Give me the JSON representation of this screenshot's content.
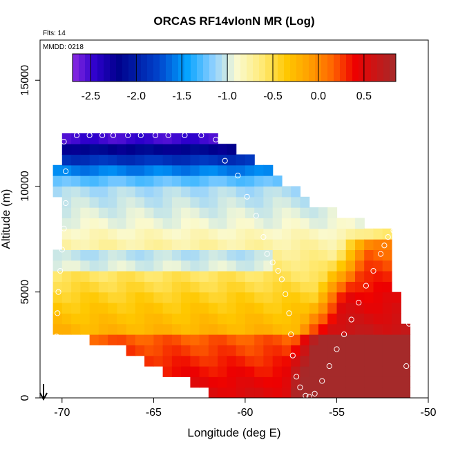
{
  "chart_data": {
    "type": "heatmap",
    "title": "ORCAS RF14vlonN MR (Log)",
    "xlabel": "Longitude (deg E)",
    "ylabel": "Altitude (m)",
    "xlim": [
      -71.2,
      -50
    ],
    "ylim": [
      0,
      16900
    ],
    "x_ticks": [
      "-70",
      "-65",
      "-60",
      "-55",
      "-50"
    ],
    "y_ticks": [
      "0",
      "5000",
      "10000",
      "15000"
    ],
    "annotations": {
      "flights": "Flts: 14",
      "date": "MMDD: 0218"
    },
    "colorbar": {
      "range": [
        -2.7,
        0.85
      ],
      "ticks": [
        "-2.5",
        "-2.0",
        "-1.5",
        "-1.0",
        "-0.5",
        "0.0",
        "0.5"
      ],
      "stops": [
        {
          "v": -2.7,
          "color": "#8b2be2"
        },
        {
          "v": -2.45,
          "color": "#2d00cc"
        },
        {
          "v": -2.2,
          "color": "#00008b"
        },
        {
          "v": -1.75,
          "color": "#0044cc"
        },
        {
          "v": -1.45,
          "color": "#00a2ff"
        },
        {
          "v": -1.15,
          "color": "#8fd0ff"
        },
        {
          "v": -0.9,
          "color": "#fafad2"
        },
        {
          "v": -0.6,
          "color": "#ffe970"
        },
        {
          "v": -0.35,
          "color": "#ffc800"
        },
        {
          "v": -0.1,
          "color": "#ffa000"
        },
        {
          "v": 0.15,
          "color": "#ff6600"
        },
        {
          "v": 0.4,
          "color": "#ee0000"
        },
        {
          "v": 0.85,
          "color": "#a52a2a"
        }
      ]
    },
    "domain_outline": {
      "lon": [
        -70.2,
        -70.3,
        -70.0,
        -69.9,
        -62.0,
        -59.0,
        -56.5,
        -53.3,
        -52.0,
        -51.9,
        -51.4,
        -51.3,
        -51.1,
        -51.0,
        -61.5,
        -67.0,
        -69.0,
        -70.5
      ],
      "alt": [
        12400,
        7000,
        6950,
        12400,
        12400,
        11000,
        9300,
        8100,
        7900,
        5100,
        5000,
        3800,
        2000,
        0,
        0,
        2500,
        2800,
        2800
      ]
    },
    "flight_track": {
      "lon": [
        -69.9,
        -69.8,
        -69.8,
        -69.9,
        -70.0,
        -70.1,
        -70.2,
        -70.25,
        -70.3,
        -69.2,
        -68.5,
        -67.8,
        -67.2,
        -66.4,
        -65.7,
        -64.9,
        -64.2,
        -63.3,
        -62.4,
        -61.6,
        -61.1,
        -60.4,
        -59.9,
        -59.4,
        -59.0,
        -58.8,
        -58.5,
        -58.2,
        -58.0,
        -57.8,
        -57.6,
        -57.5,
        -57.4,
        -57.2,
        -57.0,
        -56.7,
        -56.5,
        -56.2,
        -55.8,
        -55.4,
        -55.0,
        -54.6,
        -54.2,
        -53.8,
        -53.4,
        -53.0,
        -52.6,
        -52.4,
        -52.2,
        -51.9,
        -51.5,
        -51.1,
        -50.95,
        -51.05,
        -51.2
      ],
      "alt": [
        12100,
        10700,
        9200,
        8000,
        7000,
        6000,
        5000,
        4000,
        2900,
        12400,
        12400,
        12400,
        12400,
        12400,
        12400,
        12400,
        12400,
        12400,
        12400,
        12200,
        11200,
        10500,
        9500,
        8600,
        7600,
        6800,
        6400,
        6000,
        5600,
        4900,
        4000,
        3000,
        2000,
        1000,
        500,
        100,
        50,
        200,
        800,
        1500,
        2300,
        3000,
        3700,
        4500,
        5300,
        6000,
        6800,
        7200,
        7600,
        7900,
        7300,
        6500,
        5000,
        3500,
        1500
      ]
    }
  }
}
